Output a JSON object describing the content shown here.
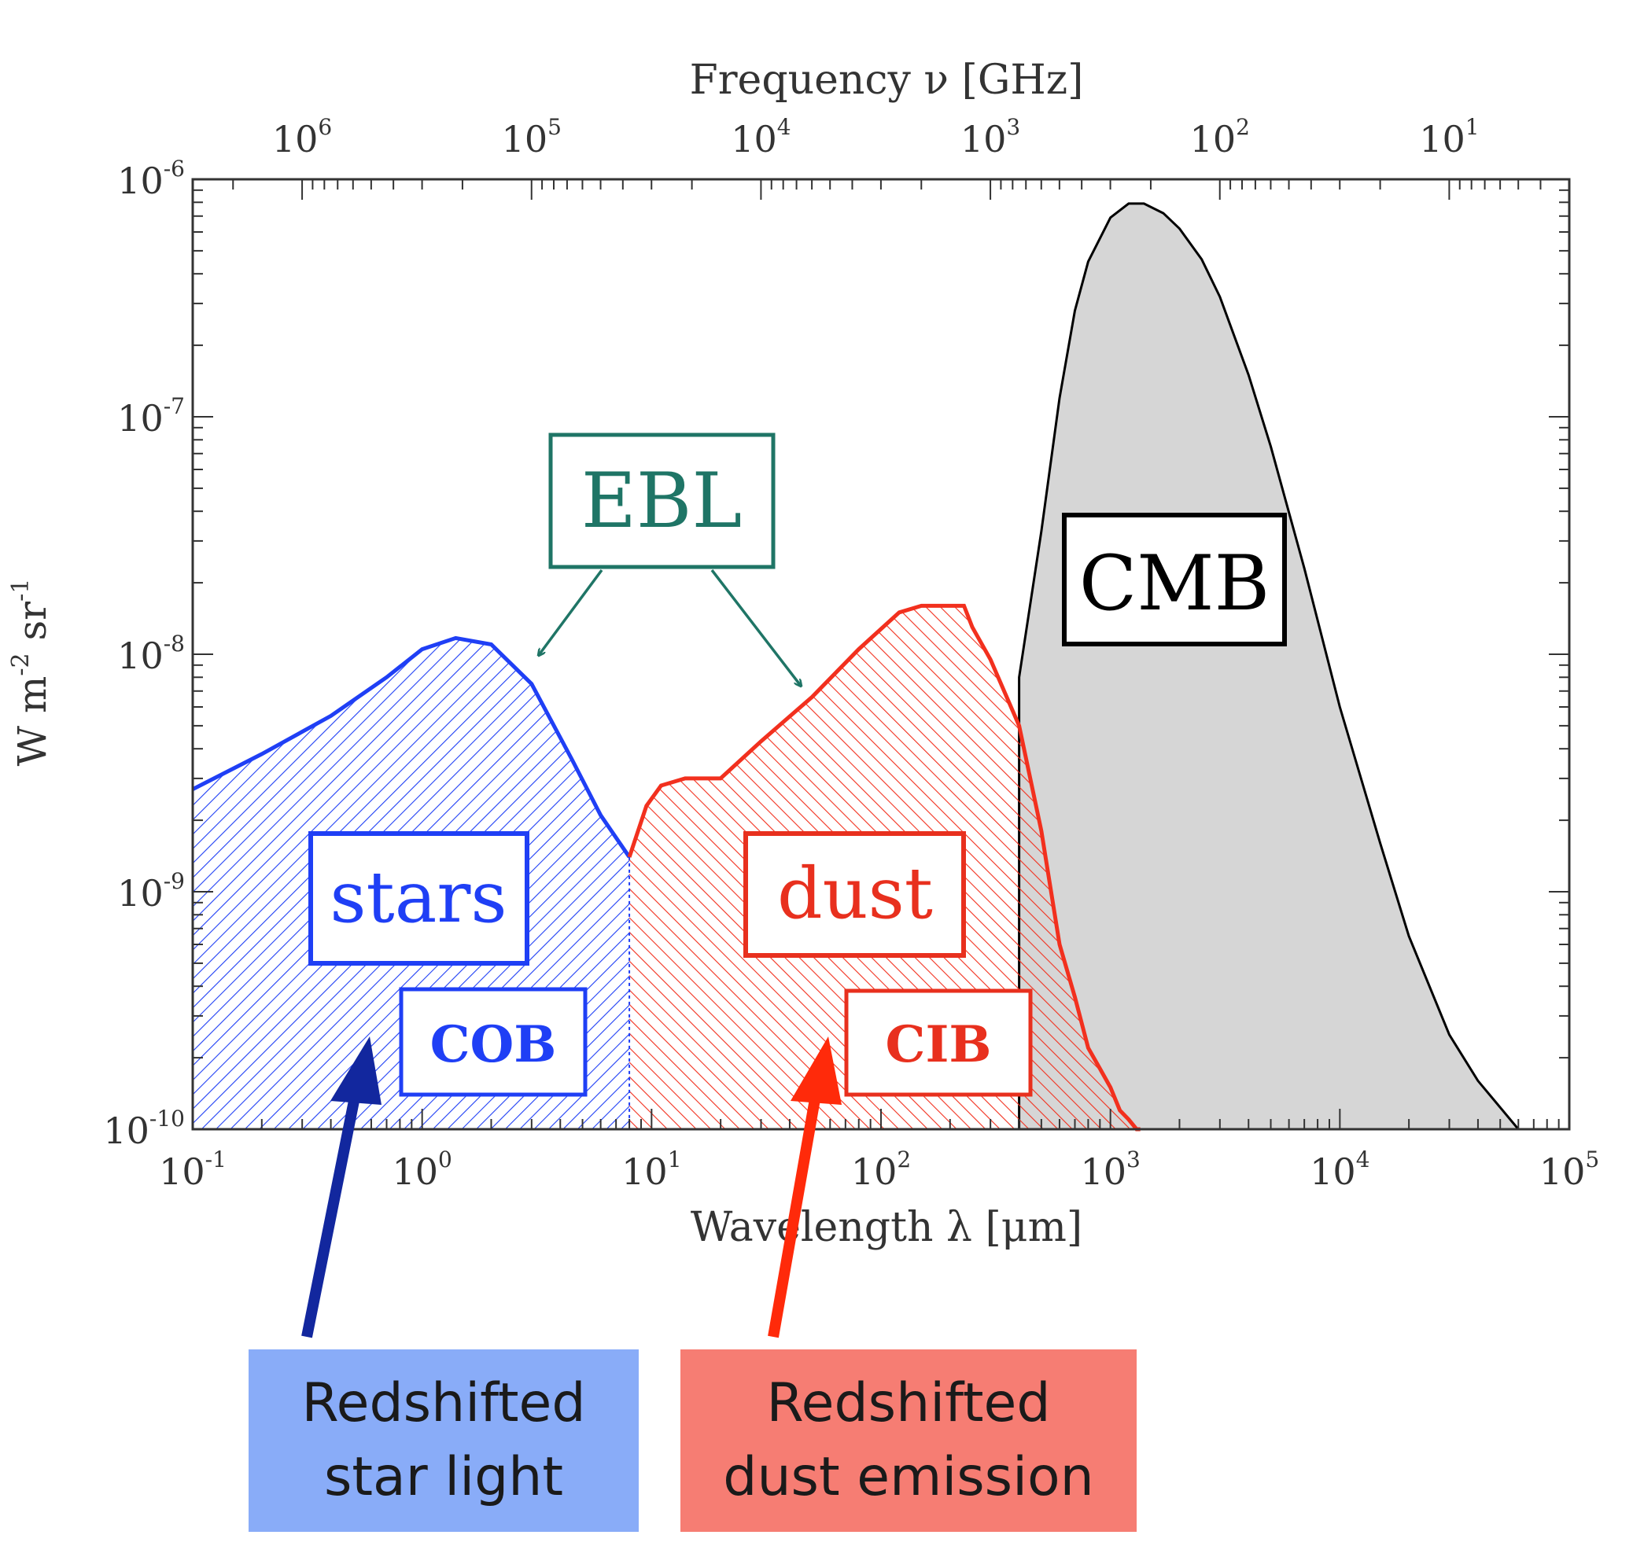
{
  "chart_data": {
    "type": "area",
    "x_axis": {
      "label": "Wavelength λ [μm]",
      "scale": "log",
      "range": [
        0.1,
        100000
      ],
      "ticks": [
        {
          "value": 0.1,
          "base": "10",
          "exp": "-1"
        },
        {
          "value": 1,
          "base": "10",
          "exp": "0"
        },
        {
          "value": 10,
          "base": "10",
          "exp": "1"
        },
        {
          "value": 100,
          "base": "10",
          "exp": "2"
        },
        {
          "value": 1000,
          "base": "10",
          "exp": "3"
        },
        {
          "value": 10000,
          "base": "10",
          "exp": "4"
        },
        {
          "value": 100000,
          "base": "10",
          "exp": "5"
        }
      ]
    },
    "x2_axis": {
      "label": "Frequency ν [GHz]",
      "scale": "log",
      "ticks": [
        {
          "value": 1000000,
          "base": "10",
          "exp": "6"
        },
        {
          "value": 100000,
          "base": "10",
          "exp": "5"
        },
        {
          "value": 10000,
          "base": "10",
          "exp": "4"
        },
        {
          "value": 1000,
          "base": "10",
          "exp": "3"
        },
        {
          "value": 100,
          "base": "10",
          "exp": "2"
        },
        {
          "value": 10,
          "base": "10",
          "exp": "1"
        }
      ]
    },
    "y_axis": {
      "label_parts": {
        "w": "W m",
        "exp1": "-2",
        "sr": " sr",
        "exp2": "-1"
      },
      "scale": "log",
      "range": [
        1e-10,
        1e-06
      ],
      "ticks": [
        {
          "value": 1e-10,
          "base": "10",
          "exp": "-10"
        },
        {
          "value": 1e-09,
          "base": "10",
          "exp": "-9"
        },
        {
          "value": 1e-08,
          "base": "10",
          "exp": "-8"
        },
        {
          "value": 1e-07,
          "base": "10",
          "exp": "-7"
        },
        {
          "value": 1e-06,
          "base": "10",
          "exp": "-6"
        }
      ]
    },
    "series": [
      {
        "id": "stars",
        "color": "#1f3ff5",
        "fill": "hatch",
        "x": [
          0.1,
          0.2,
          0.4,
          0.7,
          1.0,
          1.4,
          2.0,
          3.0,
          4.5,
          6.0,
          8.0
        ],
        "y": [
          2.7e-09,
          3.8e-09,
          5.5e-09,
          8e-09,
          1.05e-08,
          1.17e-08,
          1.1e-08,
          7.5e-09,
          3.6e-09,
          2.1e-09,
          1.4e-09
        ]
      },
      {
        "id": "dust",
        "color": "#f2301e",
        "fill": "hatch",
        "x": [
          8.0,
          9.5,
          11,
          14,
          20,
          30,
          50,
          80,
          120,
          150,
          200,
          230,
          250,
          300,
          400,
          500,
          600,
          700,
          800,
          900,
          1000,
          1100,
          1200,
          1300,
          1350
        ],
        "y": [
          1.4e-09,
          2.3e-09,
          2.8e-09,
          3e-09,
          3e-09,
          4.3e-09,
          6.6e-09,
          1.05e-08,
          1.5e-08,
          1.6e-08,
          1.6e-08,
          1.6e-08,
          1.3e-08,
          9.5e-09,
          5e-09,
          1.8e-09,
          6e-10,
          3.6e-10,
          2.2e-10,
          1.8e-10,
          1.5e-10,
          1.2e-10,
          1.1e-10,
          1e-10,
          1e-10
        ]
      },
      {
        "id": "cmb",
        "color": "#000000",
        "fill": "#d6d6d6",
        "x": [
          400,
          500,
          600,
          700,
          800,
          1000,
          1200,
          1400,
          1700,
          2000,
          2500,
          3000,
          4000,
          5000,
          7000,
          10000,
          15000,
          20000,
          30000,
          40000,
          60000
        ],
        "y": [
          8e-09,
          3.3e-08,
          1.2e-07,
          2.8e-07,
          4.5e-07,
          6.9e-07,
          7.9e-07,
          7.9e-07,
          7.2e-07,
          6.2e-07,
          4.6e-07,
          3.2e-07,
          1.5e-07,
          7.5e-08,
          2.3e-08,
          6e-09,
          1.6e-09,
          6.5e-10,
          2.5e-10,
          1.6e-10,
          1e-10
        ]
      }
    ],
    "annotations": [
      {
        "id": "ebl",
        "text": "EBL",
        "color": "#1f7566"
      },
      {
        "id": "cmb",
        "text": "CMB",
        "color": "#000000"
      },
      {
        "id": "stars",
        "text": "stars",
        "color": "#1f3ff5"
      },
      {
        "id": "dust",
        "text": "dust",
        "color": "#e8301e"
      },
      {
        "id": "cob",
        "text": "COB",
        "color": "#1f3ff5"
      },
      {
        "id": "cib",
        "text": "CIB",
        "color": "#e8301e"
      }
    ],
    "notes": [
      {
        "id": "stars-note",
        "lines": [
          "Redshifted",
          "star light"
        ],
        "color": "#89acf8",
        "arrow_color": "#12279e"
      },
      {
        "id": "dust-note",
        "lines": [
          "Redshifted",
          "dust emission"
        ],
        "color": "#f67d73",
        "arrow_color": "#ff2a0a"
      }
    ]
  }
}
